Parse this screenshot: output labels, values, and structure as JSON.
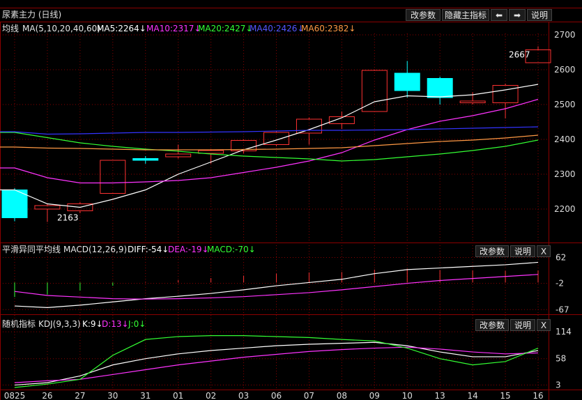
{
  "title": "尿素主力 (日线)",
  "colors": {
    "up": "#ff3232",
    "down": "#00ffff",
    "ma5": "#ffffff",
    "ma10": "#ff33ff",
    "ma20": "#33ff33",
    "ma40": "#3333ff",
    "ma60": "#ff9944",
    "grid": "#8b0000"
  },
  "top_buttons": {
    "params": "改参数",
    "hide": "隐藏主指标",
    "left_arrow": "⬅",
    "right_arrow": "➡",
    "help": "说明"
  },
  "panel_buttons": {
    "params": "改参数",
    "help": "说明",
    "close": "X"
  },
  "main_panel": {
    "label": "均线",
    "formula": "MA(5,10,20,40,60)",
    "ma5_label": "MA5:2264↓",
    "ma10_label": "MA10:2317↓",
    "ma20_label": "MA20:2427↓",
    "ma40_label": "MA40:2426↓",
    "ma60_label": "MA60:2382↓",
    "high_marker": "2667",
    "low_marker": "2163"
  },
  "macd_panel": {
    "label": "平滑异同平均线",
    "formula": "MACD(12,26,9)",
    "diff_label": "DIFF:-54↓",
    "dea_label": "DEA:-19↓",
    "macd_label": "MACD:-70↓"
  },
  "kdj_panel": {
    "label": "随机指标",
    "formula": "KDJ(9,3,3)",
    "k_label": "K:9↓",
    "d_label": "D:13↓",
    "j_label": "J:0↓"
  },
  "chart_data": [
    {
      "type": "candlestick",
      "x": [
        "0825",
        "26",
        "27",
        "30",
        "31",
        "01",
        "02",
        "03",
        "06",
        "07",
        "08",
        "09",
        "10",
        "13",
        "14",
        "15",
        "16"
      ],
      "ylim": [
        2120,
        2720
      ],
      "yticks": [
        2200,
        2300,
        2400,
        2500,
        2600,
        2700
      ],
      "candles": [
        {
          "o": 2255,
          "h": 2260,
          "l": 2165,
          "c": 2175
        },
        {
          "o": 2200,
          "h": 2215,
          "l": 2163,
          "c": 2210
        },
        {
          "o": 2195,
          "h": 2220,
          "l": 2188,
          "c": 2215
        },
        {
          "o": 2245,
          "h": 2340,
          "l": 2245,
          "c": 2340
        },
        {
          "o": 2345,
          "h": 2352,
          "l": 2330,
          "c": 2340
        },
        {
          "o": 2350,
          "h": 2385,
          "l": 2345,
          "c": 2358
        },
        {
          "o": 2360,
          "h": 2372,
          "l": 2330,
          "c": 2368
        },
        {
          "o": 2367,
          "h": 2400,
          "l": 2360,
          "c": 2397
        },
        {
          "o": 2385,
          "h": 2425,
          "l": 2380,
          "c": 2420
        },
        {
          "o": 2418,
          "h": 2462,
          "l": 2385,
          "c": 2458
        },
        {
          "o": 2445,
          "h": 2480,
          "l": 2430,
          "c": 2465
        },
        {
          "o": 2480,
          "h": 2600,
          "l": 2480,
          "c": 2598
        },
        {
          "o": 2590,
          "h": 2625,
          "l": 2520,
          "c": 2540
        },
        {
          "o": 2575,
          "h": 2580,
          "l": 2500,
          "c": 2520
        },
        {
          "o": 2505,
          "h": 2535,
          "l": 2500,
          "c": 2510
        },
        {
          "o": 2505,
          "h": 2560,
          "l": 2460,
          "c": 2555
        },
        {
          "o": 2620,
          "h": 2667,
          "l": 2620,
          "c": 2657
        }
      ],
      "series": [
        {
          "name": "MA5",
          "values": [
            2255,
            2215,
            2205,
            2228,
            2255,
            2300,
            2335,
            2370,
            2398,
            2428,
            2462,
            2508,
            2525,
            2522,
            2528,
            2542,
            2558
          ]
        },
        {
          "name": "MA10",
          "values": [
            2318,
            2290,
            2275,
            2275,
            2278,
            2282,
            2290,
            2305,
            2320,
            2338,
            2362,
            2398,
            2428,
            2452,
            2468,
            2488,
            2515
          ]
        },
        {
          "name": "MA20",
          "values": [
            2420,
            2405,
            2390,
            2380,
            2372,
            2366,
            2358,
            2352,
            2348,
            2344,
            2338,
            2342,
            2350,
            2358,
            2368,
            2380,
            2398
          ]
        },
        {
          "name": "MA40",
          "values": [
            2422,
            2415,
            2416,
            2418,
            2420,
            2420,
            2421,
            2422,
            2424,
            2426,
            2426,
            2427,
            2428,
            2430,
            2432,
            2434,
            2436
          ]
        },
        {
          "name": "MA60",
          "values": [
            2378,
            2375,
            2374,
            2372,
            2370,
            2370,
            2370,
            2371,
            2372,
            2374,
            2376,
            2382,
            2388,
            2394,
            2398,
            2404,
            2412
          ]
        }
      ]
    },
    {
      "type": "macd",
      "ylim": [
        -70,
        68
      ],
      "yticks": [
        62,
        -2,
        -67
      ],
      "series": [
        {
          "name": "DIFF",
          "values": [
            -58,
            -62,
            -56,
            -48,
            -40,
            -34,
            -27,
            -18,
            -8,
            0,
            8,
            22,
            32,
            36,
            40,
            44,
            50
          ]
        },
        {
          "name": "DEA",
          "values": [
            -22,
            -32,
            -36,
            -40,
            -41,
            -40,
            -38,
            -35,
            -30,
            -25,
            -18,
            -10,
            -2,
            5,
            10,
            15,
            20
          ]
        },
        {
          "name": "MACD",
          "values": [
            -36,
            -30,
            -20,
            -8,
            1,
            6,
            11,
            17,
            22,
            25,
            26,
            32,
            34,
            31,
            30,
            29,
            30
          ]
        }
      ]
    },
    {
      "type": "kdj",
      "ylim": [
        -2,
        120
      ],
      "yticks": [
        114,
        58,
        3
      ],
      "series": [
        {
          "name": "K",
          "values": [
            3,
            8,
            22,
            45,
            58,
            68,
            75,
            80,
            85,
            88,
            90,
            92,
            85,
            72,
            62,
            62,
            75
          ]
        },
        {
          "name": "D",
          "values": [
            8,
            12,
            15,
            25,
            35,
            45,
            53,
            61,
            67,
            73,
            77,
            80,
            82,
            78,
            72,
            68,
            70
          ]
        },
        {
          "name": "J",
          "values": [
            -2,
            5,
            15,
            65,
            98,
            104,
            106,
            106,
            104,
            102,
            98,
            95,
            80,
            58,
            45,
            52,
            80
          ]
        }
      ]
    }
  ]
}
